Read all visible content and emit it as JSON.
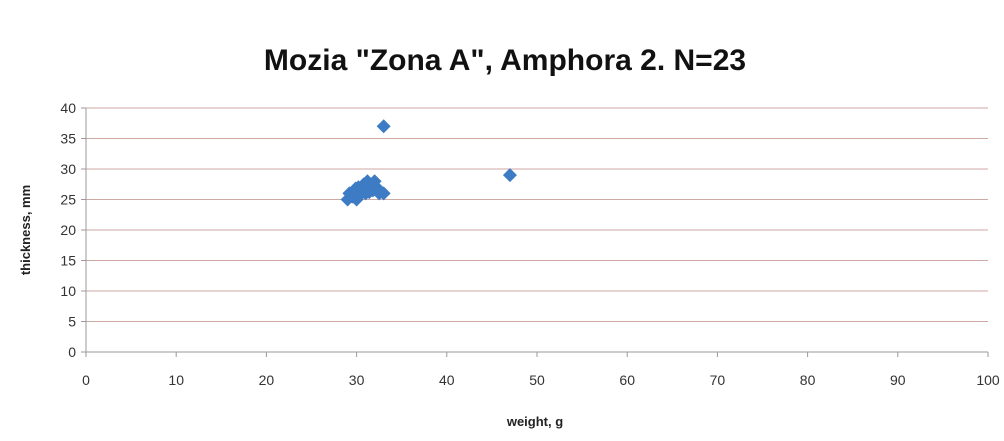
{
  "chart_data": {
    "type": "scatter",
    "title": "Mozia \"Zona A\", Amphora 2. N=23",
    "xlabel": "weight, g",
    "ylabel": "thickness, mm",
    "xlim": [
      0,
      100
    ],
    "ylim": [
      0,
      40
    ],
    "xticks": [
      "0",
      "10",
      "20",
      "30",
      "40",
      "50",
      "60",
      "70",
      "80",
      "90",
      "100"
    ],
    "yticks": [
      "0",
      "5",
      "10",
      "15",
      "20",
      "25",
      "30",
      "35",
      "40"
    ],
    "grid": "horizontal",
    "marker_color": "#3d7cc4",
    "marker": "diamond",
    "series": [
      {
        "x": [
          29,
          29.2,
          29.5,
          29.8,
          30,
          30.2,
          30.5,
          30.8,
          31,
          31.2,
          31.5,
          29.6,
          30.4,
          31.8,
          32,
          32.2,
          32.5,
          33,
          30.6,
          31.4,
          29.9,
          33,
          47
        ],
        "y": [
          25,
          26,
          25.5,
          26.5,
          25,
          27,
          26,
          27.5,
          26,
          28,
          27,
          25.5,
          25.8,
          26.5,
          28,
          27,
          26,
          26,
          26.3,
          26.2,
          26.8,
          37,
          29
        ]
      }
    ]
  }
}
